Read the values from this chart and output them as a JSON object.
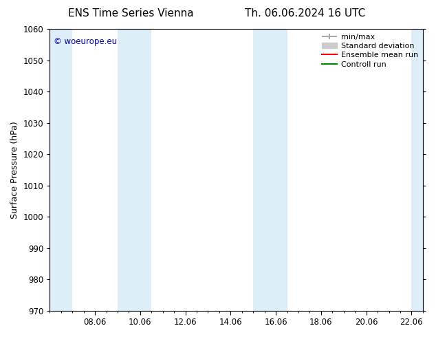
{
  "title_left": "ENS Time Series Vienna",
  "title_right": "Th. 06.06.2024 16 UTC",
  "ylabel": "Surface Pressure (hPa)",
  "ylim": [
    970,
    1060
  ],
  "yticks": [
    970,
    980,
    990,
    1000,
    1010,
    1020,
    1030,
    1040,
    1050,
    1060
  ],
  "xlim": [
    6.0,
    22.5
  ],
  "xtick_labels": [
    "08.06",
    "10.06",
    "12.06",
    "14.06",
    "16.06",
    "18.06",
    "20.06",
    "22.06"
  ],
  "xtick_positions": [
    8,
    10,
    12,
    14,
    16,
    18,
    20,
    22
  ],
  "shaded_bands": [
    {
      "xmin": 6.0,
      "xmax": 7.0,
      "color": "#ddeef9"
    },
    {
      "xmin": 9.0,
      "xmax": 10.5,
      "color": "#ddeef9"
    },
    {
      "xmin": 15.0,
      "xmax": 16.5,
      "color": "#ddeef9"
    },
    {
      "xmin": 22.0,
      "xmax": 22.5,
      "color": "#ddeef9"
    }
  ],
  "watermark_text": "© woeurope.eu",
  "watermark_color": "#0000cc",
  "legend_items": [
    {
      "label": "min/max",
      "color": "#aaaaaa",
      "lw": 1.5
    },
    {
      "label": "Standard deviation",
      "color": "#cccccc",
      "lw": 8
    },
    {
      "label": "Ensemble mean run",
      "color": "#ff0000",
      "lw": 1.5
    },
    {
      "label": "Controll run",
      "color": "#008800",
      "lw": 1.5
    }
  ],
  "bg_color": "#ffffff",
  "plot_bg_color": "#ffffff",
  "grid_color": "#cccccc",
  "title_fontsize": 11,
  "axis_label_fontsize": 9,
  "tick_fontsize": 8.5,
  "legend_fontsize": 8
}
